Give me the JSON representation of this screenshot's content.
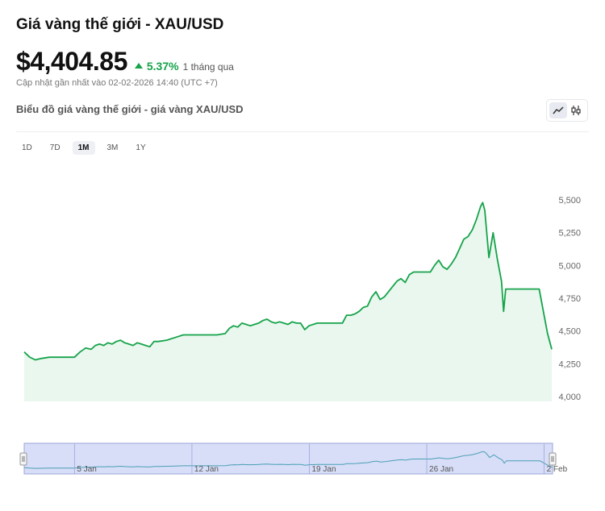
{
  "header": {
    "title": "Giá vàng thế giới - XAU/USD",
    "price": "$4,404.85",
    "change_percent": "5.37%",
    "change_period": "1 tháng qua",
    "updated": "Cập nhật gần nhất vào 02-02-2026 14:40 (UTC +7)"
  },
  "chart_section": {
    "subtitle": "Biểu đồ giá vàng thế giới - giá vàng XAU/USD",
    "toggle_icons": [
      "line-chart-icon",
      "candlestick-icon"
    ]
  },
  "ranges": [
    {
      "label": "1D",
      "active": false
    },
    {
      "label": "7D",
      "active": false
    },
    {
      "label": "1M",
      "active": true
    },
    {
      "label": "3M",
      "active": false
    },
    {
      "label": "1Y",
      "active": false
    }
  ],
  "colors": {
    "line": "#16a34a",
    "area": "#e9f7ee",
    "navigator_fill": "#c7d0f5",
    "accent_green": "#16a34a"
  },
  "chart_data": {
    "type": "area",
    "title": "",
    "xlabel": "",
    "ylabel": "",
    "ylim": [
      4000,
      5500
    ],
    "yticks": [
      "5,500",
      "5,250",
      "5,000",
      "4,750",
      "4,500",
      "4,250",
      "4,000"
    ],
    "ytick_values": [
      5500,
      5250,
      5000,
      4750,
      4500,
      4250,
      4000
    ],
    "grid": false,
    "legend": "none",
    "x_range": [
      "2026-01-02",
      "2026-02-02"
    ],
    "navigator_ticks": [
      {
        "label": "5 Jan",
        "date": "2026-01-05"
      },
      {
        "label": "12 Jan",
        "date": "2026-01-12"
      },
      {
        "label": "19 Jan",
        "date": "2026-01-19"
      },
      {
        "label": "26 Jan",
        "date": "2026-01-26"
      },
      {
        "label": "2 Feb",
        "date": "2026-02-02"
      }
    ],
    "series": [
      {
        "points": [
          [
            "2026-01-02 00:00",
            4340
          ],
          [
            "2026-01-02 08:00",
            4300
          ],
          [
            "2026-01-02 16:00",
            4280
          ],
          [
            "2026-01-03 00:00",
            4290
          ],
          [
            "2026-01-03 12:00",
            4300
          ],
          [
            "2026-01-04 00:00",
            4300
          ],
          [
            "2026-01-04 12:00",
            4300
          ],
          [
            "2026-01-05 00:00",
            4300
          ],
          [
            "2026-01-05 08:00",
            4340
          ],
          [
            "2026-01-05 16:00",
            4370
          ],
          [
            "2026-01-06 00:00",
            4360
          ],
          [
            "2026-01-06 06:00",
            4390
          ],
          [
            "2026-01-06 12:00",
            4400
          ],
          [
            "2026-01-06 18:00",
            4390
          ],
          [
            "2026-01-07 00:00",
            4410
          ],
          [
            "2026-01-07 06:00",
            4400
          ],
          [
            "2026-01-07 12:00",
            4420
          ],
          [
            "2026-01-07 18:00",
            4430
          ],
          [
            "2026-01-08 00:00",
            4410
          ],
          [
            "2026-01-08 06:00",
            4400
          ],
          [
            "2026-01-08 12:00",
            4390
          ],
          [
            "2026-01-08 18:00",
            4410
          ],
          [
            "2026-01-09 00:00",
            4400
          ],
          [
            "2026-01-09 06:00",
            4390
          ],
          [
            "2026-01-09 12:00",
            4380
          ],
          [
            "2026-01-09 18:00",
            4420
          ],
          [
            "2026-01-10 00:00",
            4420
          ],
          [
            "2026-01-10 12:00",
            4430
          ],
          [
            "2026-01-11 00:00",
            4450
          ],
          [
            "2026-01-11 12:00",
            4470
          ],
          [
            "2026-01-12 00:00",
            4470
          ],
          [
            "2026-01-12 12:00",
            4470
          ],
          [
            "2026-01-13 00:00",
            4470
          ],
          [
            "2026-01-13 12:00",
            4470
          ],
          [
            "2026-01-14 00:00",
            4480
          ],
          [
            "2026-01-14 06:00",
            4520
          ],
          [
            "2026-01-14 12:00",
            4540
          ],
          [
            "2026-01-14 18:00",
            4530
          ],
          [
            "2026-01-15 00:00",
            4560
          ],
          [
            "2026-01-15 06:00",
            4550
          ],
          [
            "2026-01-15 12:00",
            4540
          ],
          [
            "2026-01-15 18:00",
            4550
          ],
          [
            "2026-01-16 00:00",
            4560
          ],
          [
            "2026-01-16 06:00",
            4580
          ],
          [
            "2026-01-16 12:00",
            4590
          ],
          [
            "2026-01-16 18:00",
            4570
          ],
          [
            "2026-01-17 00:00",
            4560
          ],
          [
            "2026-01-17 06:00",
            4570
          ],
          [
            "2026-01-17 12:00",
            4560
          ],
          [
            "2026-01-17 18:00",
            4550
          ],
          [
            "2026-01-18 00:00",
            4570
          ],
          [
            "2026-01-18 06:00",
            4560
          ],
          [
            "2026-01-18 12:00",
            4560
          ],
          [
            "2026-01-18 18:00",
            4510
          ],
          [
            "2026-01-19 00:00",
            4540
          ],
          [
            "2026-01-19 12:00",
            4560
          ],
          [
            "2026-01-20 00:00",
            4560
          ],
          [
            "2026-01-20 12:00",
            4560
          ],
          [
            "2026-01-21 00:00",
            4560
          ],
          [
            "2026-01-21 06:00",
            4620
          ],
          [
            "2026-01-21 12:00",
            4620
          ],
          [
            "2026-01-21 18:00",
            4630
          ],
          [
            "2026-01-22 00:00",
            4650
          ],
          [
            "2026-01-22 06:00",
            4680
          ],
          [
            "2026-01-22 12:00",
            4690
          ],
          [
            "2026-01-22 18:00",
            4760
          ],
          [
            "2026-01-23 00:00",
            4800
          ],
          [
            "2026-01-23 06:00",
            4740
          ],
          [
            "2026-01-23 12:00",
            4760
          ],
          [
            "2026-01-23 18:00",
            4800
          ],
          [
            "2026-01-24 00:00",
            4840
          ],
          [
            "2026-01-24 06:00",
            4880
          ],
          [
            "2026-01-24 12:00",
            4900
          ],
          [
            "2026-01-24 18:00",
            4870
          ],
          [
            "2026-01-25 00:00",
            4930
          ],
          [
            "2026-01-25 06:00",
            4950
          ],
          [
            "2026-01-25 12:00",
            4950
          ],
          [
            "2026-01-25 18:00",
            4950
          ],
          [
            "2026-01-26 00:00",
            4950
          ],
          [
            "2026-01-26 06:00",
            4950
          ],
          [
            "2026-01-26 12:00",
            5000
          ],
          [
            "2026-01-26 18:00",
            5040
          ],
          [
            "2026-01-27 00:00",
            4990
          ],
          [
            "2026-01-27 06:00",
            4970
          ],
          [
            "2026-01-27 12:00",
            5010
          ],
          [
            "2026-01-27 18:00",
            5060
          ],
          [
            "2026-01-28 00:00",
            5130
          ],
          [
            "2026-01-28 06:00",
            5200
          ],
          [
            "2026-01-28 12:00",
            5220
          ],
          [
            "2026-01-28 18:00",
            5270
          ],
          [
            "2026-01-29 00:00",
            5350
          ],
          [
            "2026-01-29 06:00",
            5450
          ],
          [
            "2026-01-29 09:00",
            5480
          ],
          [
            "2026-01-29 12:00",
            5420
          ],
          [
            "2026-01-29 18:00",
            5060
          ],
          [
            "2026-01-30 00:00",
            5250
          ],
          [
            "2026-01-30 06:00",
            5050
          ],
          [
            "2026-01-30 12:00",
            4880
          ],
          [
            "2026-01-30 15:00",
            4650
          ],
          [
            "2026-01-30 18:00",
            4820
          ],
          [
            "2026-01-31 00:00",
            4820
          ],
          [
            "2026-01-31 12:00",
            4820
          ],
          [
            "2026-02-01 00:00",
            4820
          ],
          [
            "2026-02-01 12:00",
            4820
          ],
          [
            "2026-02-01 18:00",
            4820
          ],
          [
            "2026-02-02 00:00",
            4650
          ],
          [
            "2026-02-02 06:00",
            4480
          ],
          [
            "2026-02-02 12:00",
            4360
          ]
        ]
      }
    ]
  }
}
